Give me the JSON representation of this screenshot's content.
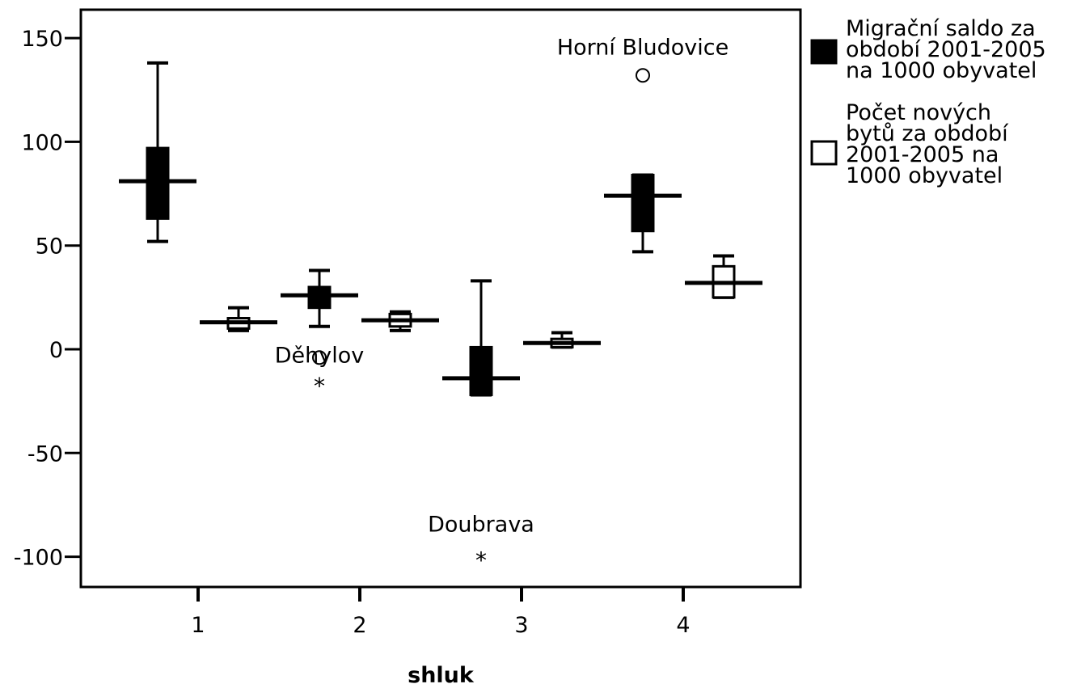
{
  "chart_data": {
    "type": "boxplot",
    "xlabel": "shluk",
    "ylabel": "",
    "categories": [
      "1",
      "2",
      "3",
      "4"
    ],
    "ylim": [
      -115,
      162
    ],
    "yticks": [
      150,
      100,
      50,
      0,
      -50,
      -100
    ],
    "yticklabels": [
      "150",
      "100",
      "50",
      "0",
      "-50",
      "-100"
    ],
    "legend_position": "right",
    "series": [
      {
        "name": "Migrační saldo za období 2001-2005 na 1000 obyvatel",
        "fill": "#000000",
        "boxes": [
          {
            "category": "1",
            "min": 52,
            "q1": 63,
            "median": 81,
            "q3": 97,
            "max": 138
          },
          {
            "category": "2",
            "min": 11,
            "q1": 20,
            "median": 26,
            "q3": 30,
            "max": 38
          },
          {
            "category": "3",
            "min": -22,
            "q1": -22,
            "median": -14,
            "q3": 1,
            "max": 33
          },
          {
            "category": "4",
            "min": 47,
            "q1": 57,
            "median": 74,
            "q3": 84,
            "max": 84
          }
        ]
      },
      {
        "name": "Počet nových bytů za období 2001-2005 na 1000 obyvatel",
        "fill": "#ffffff",
        "boxes": [
          {
            "category": "1",
            "min": 9,
            "q1": 10,
            "median": 13,
            "q3": 15,
            "max": 20
          },
          {
            "category": "2",
            "min": 9,
            "q1": 11,
            "median": 14,
            "q3": 17,
            "max": 18
          },
          {
            "category": "3",
            "min": 1,
            "q1": 1,
            "median": 3,
            "q3": 5,
            "max": 8
          },
          {
            "category": "4",
            "min": 25,
            "q1": 25,
            "median": 32,
            "q3": 40,
            "max": 45
          }
        ]
      }
    ],
    "outliers": [
      {
        "series": 0,
        "category": "2",
        "value": -4,
        "marker": "circle",
        "label": "Děhylov"
      },
      {
        "series": 0,
        "category": "2",
        "value": -14,
        "marker": "star",
        "label": ""
      },
      {
        "series": 0,
        "category": "3",
        "value": -98,
        "marker": "star",
        "label": "Doubrava"
      },
      {
        "series": 0,
        "category": "4",
        "value": 132,
        "marker": "circle",
        "label": "Horní Bludovice"
      }
    ],
    "legend": [
      {
        "lines": [
          "Migrační saldo za",
          "období 2001-2005",
          "na 1000 obyvatel"
        ],
        "fill": "#000000"
      },
      {
        "lines": [
          "Počet nových",
          "bytů za období",
          "2001-2005 na",
          "1000 obyvatel"
        ],
        "fill": "#ffffff"
      }
    ]
  }
}
